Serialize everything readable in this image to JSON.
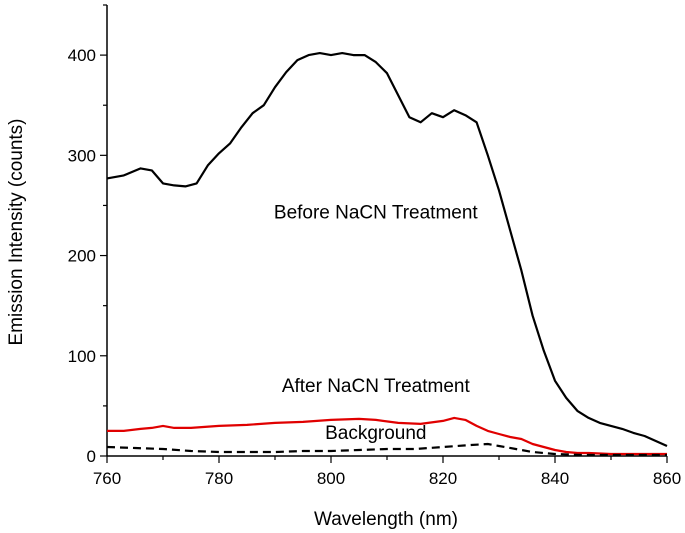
{
  "chart_data": {
    "type": "line",
    "title": "",
    "xlabel": "Wavelength (nm)",
    "ylabel": "Emission Intensity (counts)",
    "xlim": [
      760,
      860
    ],
    "ylim": [
      0,
      450
    ],
    "xticks": [
      760,
      780,
      800,
      820,
      840,
      860
    ],
    "yticks": [
      0,
      100,
      200,
      300,
      400
    ],
    "grid": false,
    "legend": "none",
    "series": [
      {
        "name": "Before NaCN Treatment",
        "color": "#000000",
        "style": "solid",
        "x": [
          760,
          763,
          766,
          768,
          770,
          772,
          774,
          776,
          778,
          780,
          782,
          784,
          786,
          788,
          790,
          792,
          794,
          796,
          798,
          800,
          802,
          804,
          806,
          808,
          810,
          812,
          814,
          816,
          818,
          820,
          822,
          824,
          826,
          828,
          830,
          832,
          834,
          836,
          838,
          840,
          842,
          844,
          846,
          848,
          850,
          852,
          854,
          856,
          858,
          860
        ],
        "y": [
          277,
          280,
          287,
          285,
          272,
          270,
          269,
          272,
          290,
          302,
          312,
          328,
          342,
          350,
          368,
          383,
          395,
          400,
          402,
          400,
          402,
          400,
          400,
          393,
          382,
          360,
          338,
          333,
          342,
          338,
          345,
          340,
          333,
          300,
          265,
          225,
          185,
          140,
          105,
          75,
          58,
          45,
          38,
          33,
          30,
          27,
          23,
          20,
          15,
          10
        ]
      },
      {
        "name": "After NaCN Treatment",
        "color": "#e00000",
        "style": "solid",
        "x": [
          760,
          763,
          766,
          768,
          770,
          772,
          775,
          780,
          785,
          790,
          795,
          800,
          805,
          808,
          812,
          816,
          820,
          822,
          824,
          826,
          828,
          830,
          832,
          834,
          836,
          838,
          840,
          842,
          844,
          846,
          850,
          855,
          860
        ],
        "y": [
          25,
          25,
          27,
          28,
          30,
          28,
          28,
          30,
          31,
          33,
          34,
          36,
          37,
          36,
          33,
          32,
          35,
          38,
          36,
          30,
          25,
          22,
          19,
          17,
          12,
          9,
          6,
          4,
          3,
          3,
          2,
          2,
          2
        ]
      },
      {
        "name": "Background",
        "color": "#000000",
        "style": "dashed",
        "x": [
          760,
          765,
          770,
          775,
          780,
          785,
          790,
          795,
          800,
          805,
          810,
          815,
          820,
          825,
          828,
          830,
          833,
          836,
          840,
          845,
          850,
          855,
          860
        ],
        "y": [
          9,
          8,
          7,
          5,
          4,
          4,
          4,
          5,
          5,
          6,
          7,
          7,
          9,
          11,
          12,
          10,
          7,
          4,
          2,
          1,
          1,
          1,
          1
        ]
      }
    ],
    "annotations": [
      {
        "text": "Before NaCN Treatment",
        "x": 808,
        "y": 237
      },
      {
        "text": "After NaCN Treatment",
        "x": 808,
        "y": 64
      },
      {
        "text": "Background",
        "x": 808,
        "y": 17
      }
    ]
  }
}
